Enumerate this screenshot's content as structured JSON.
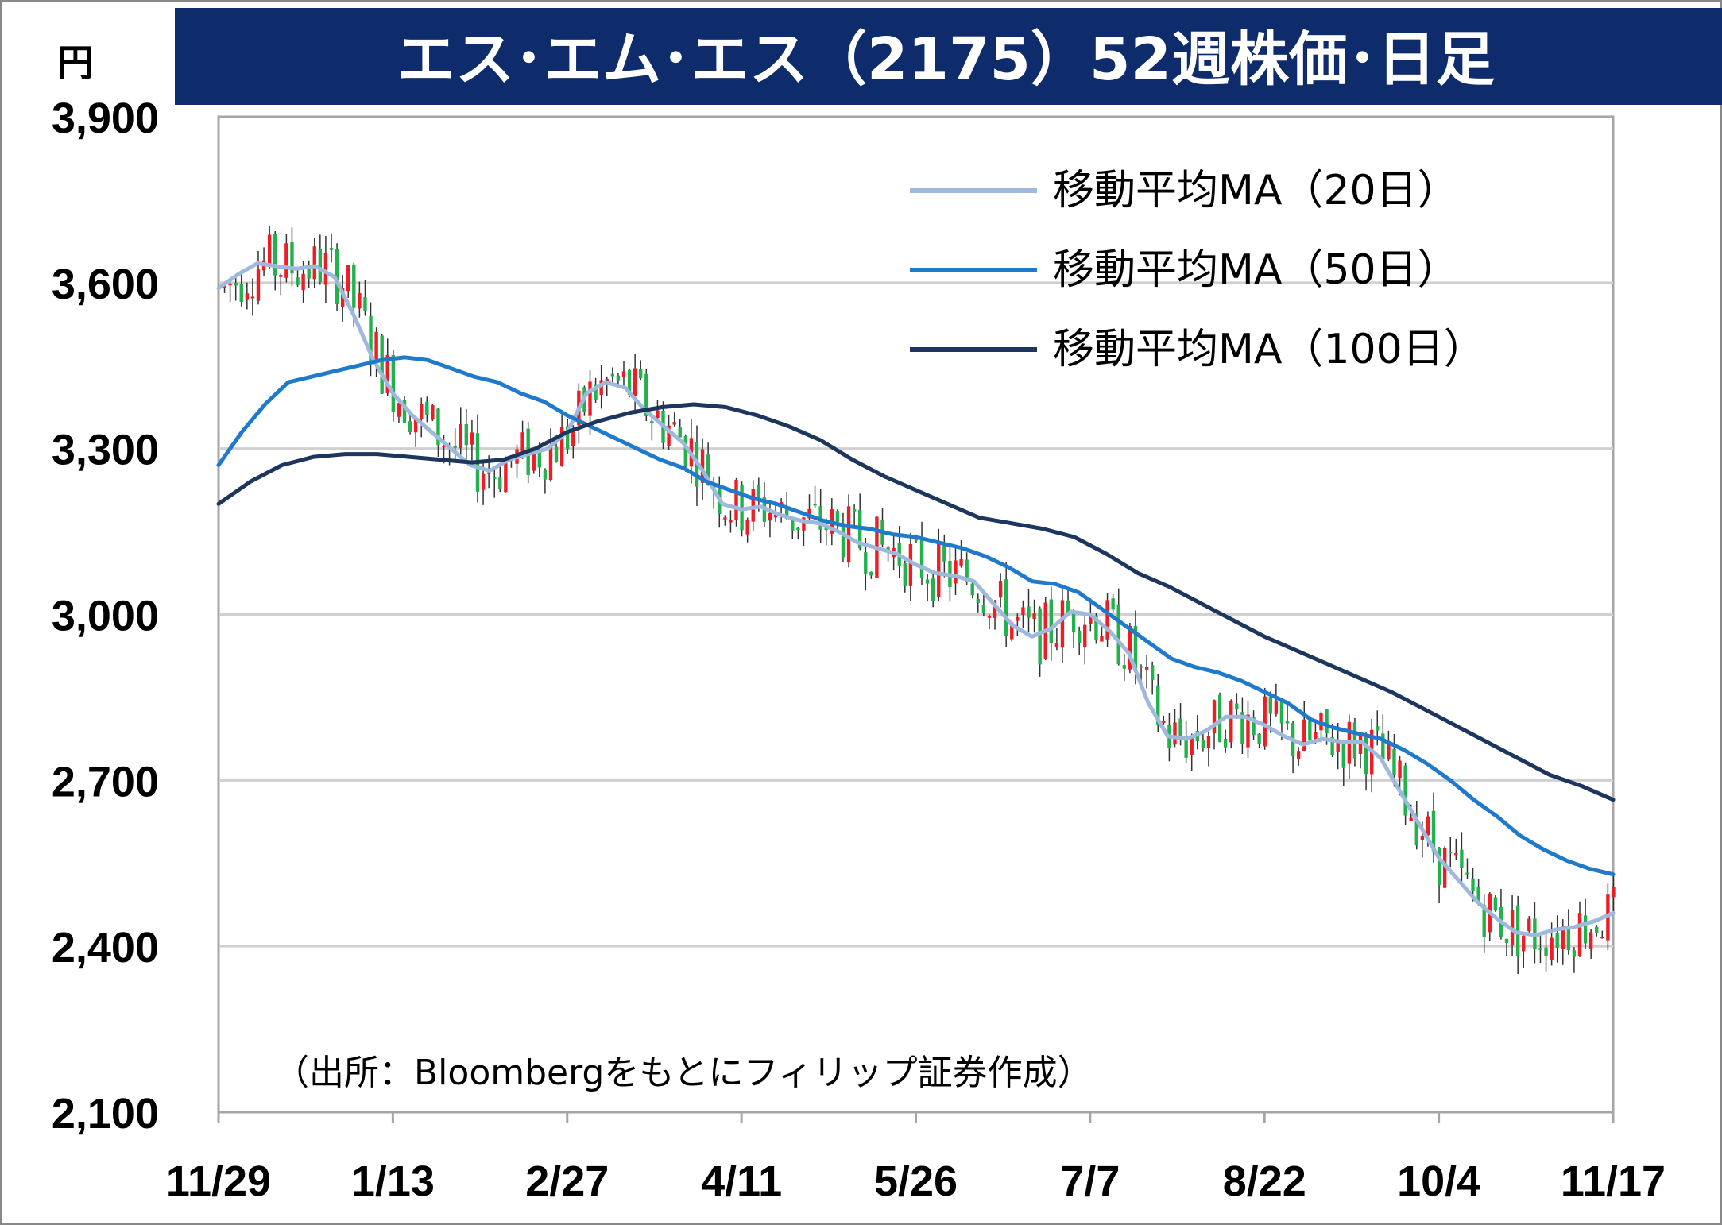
{
  "chart_data": {
    "type": "candlestick",
    "title": "エス･エム･エス（2175）52週株価･日足",
    "ylabel": "円",
    "source_note": "（出所：Bloombergをもとにフィリップ証券作成）",
    "ylim": [
      2100,
      3900
    ],
    "y_ticks": [
      "2,100",
      "2,400",
      "2,700",
      "3,000",
      "3,300",
      "3,600",
      "3,900"
    ],
    "y_tick_values": [
      2100,
      2400,
      2700,
      3000,
      3300,
      3600,
      3900
    ],
    "x_ticks": [
      "11/29",
      "1/13",
      "2/27",
      "4/11",
      "5/26",
      "7/7",
      "8/22",
      "10/4",
      "11/17"
    ],
    "n_days": 248,
    "grid": true,
    "legend_position": "top-right",
    "series": [
      {
        "name": "移動平均MA（20日）",
        "color": "#9fb9dc",
        "values": [
          3590,
          3615,
          3635,
          3630,
          3625,
          3630,
          3610,
          3540,
          3460,
          3400,
          3360,
          3330,
          3300,
          3270,
          3260,
          3280,
          3290,
          3300,
          3330,
          3400,
          3420,
          3410,
          3370,
          3340,
          3310,
          3260,
          3200,
          3190,
          3195,
          3180,
          3170,
          3165,
          3150,
          3130,
          3120,
          3110,
          3090,
          3075,
          3070,
          3060,
          3020,
          2980,
          2960,
          2975,
          3005,
          3000,
          2970,
          2930,
          2840,
          2780,
          2775,
          2790,
          2815,
          2815,
          2800,
          2780,
          2765,
          2775,
          2770,
          2770,
          2740,
          2680,
          2620,
          2560,
          2520,
          2480,
          2450,
          2425,
          2420,
          2430,
          2435,
          2445,
          2460
        ]
      },
      {
        "name": "移動平均MA（50日）",
        "color": "#1f7acc",
        "values": [
          3270,
          3330,
          3380,
          3420,
          3430,
          3440,
          3450,
          3460,
          3465,
          3460,
          3445,
          3430,
          3420,
          3400,
          3385,
          3360,
          3340,
          3320,
          3300,
          3280,
          3265,
          3240,
          3225,
          3210,
          3200,
          3185,
          3170,
          3160,
          3155,
          3145,
          3140,
          3130,
          3120,
          3105,
          3085,
          3060,
          3055,
          3040,
          3010,
          2980,
          2950,
          2920,
          2905,
          2895,
          2880,
          2860,
          2840,
          2810,
          2795,
          2785,
          2775,
          2755,
          2730,
          2700,
          2665,
          2635,
          2600,
          2575,
          2555,
          2540,
          2530
        ]
      },
      {
        "name": "移動平均MA（100日）",
        "color": "#1c365e",
        "values": [
          3200,
          3240,
          3270,
          3285,
          3290,
          3290,
          3285,
          3280,
          3275,
          3280,
          3300,
          3330,
          3350,
          3365,
          3375,
          3380,
          3375,
          3360,
          3340,
          3315,
          3280,
          3250,
          3225,
          3200,
          3175,
          3165,
          3155,
          3140,
          3110,
          3075,
          3050,
          3020,
          2990,
          2960,
          2935,
          2910,
          2885,
          2860,
          2830,
          2800,
          2770,
          2740,
          2710,
          2690,
          2665
        ]
      }
    ]
  }
}
